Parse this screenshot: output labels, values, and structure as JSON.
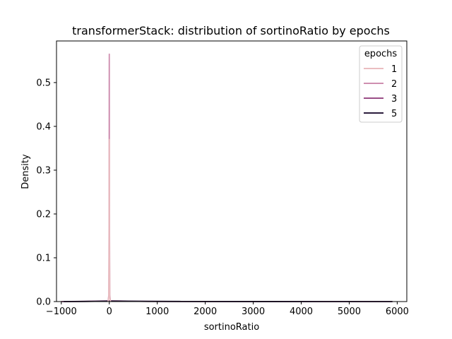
{
  "chart_data": {
    "type": "line",
    "title": "transformerStack: distribution of sortinoRatio by epochs",
    "xlabel": "sortinoRatio",
    "ylabel": "Density",
    "xlim": [
      -1100,
      6200
    ],
    "ylim": [
      0,
      0.595
    ],
    "x_ticks": [
      -1000,
      0,
      1000,
      2000,
      3000,
      4000,
      5000,
      6000
    ],
    "x_tick_labels": [
      "−1000",
      "0",
      "1000",
      "2000",
      "3000",
      "4000",
      "5000",
      "6000"
    ],
    "y_ticks": [
      0.0,
      0.1,
      0.2,
      0.3,
      0.4,
      0.5
    ],
    "y_tick_labels": [
      "0.0",
      "0.1",
      "0.2",
      "0.3",
      "0.4",
      "0.5"
    ],
    "grid": false,
    "legend": {
      "title": "epochs",
      "placement": "top-right"
    },
    "series": [
      {
        "name": "1",
        "color": "#eabdc0",
        "x": [
          -25,
          -10,
          -4,
          -1,
          0,
          1,
          4,
          10,
          25
        ],
        "y": [
          0,
          0.01,
          0.12,
          0.35,
          0.37,
          0.35,
          0.12,
          0.01,
          0
        ]
      },
      {
        "name": "2",
        "color": "#cf8fb0",
        "x": [
          -25,
          -10,
          -4,
          -1,
          0,
          1,
          4,
          10,
          25
        ],
        "y": [
          0,
          0.015,
          0.2,
          0.54,
          0.565,
          0.54,
          0.2,
          0.015,
          0
        ]
      },
      {
        "name": "3",
        "color": "#9a4e86",
        "x": [
          -1000,
          -600,
          -300,
          0,
          200,
          600,
          1200,
          3000,
          5900
        ],
        "y": [
          0,
          0.0004,
          0.001,
          0.0016,
          0.0013,
          0.0006,
          0.0002,
          5e-05,
          0
        ]
      },
      {
        "name": "5",
        "color": "#2b1d3d",
        "x": [
          -950,
          -500,
          -200,
          0,
          300,
          800,
          1500,
          3000,
          4500,
          5900
        ],
        "y": [
          0,
          0.0003,
          0.0008,
          0.0012,
          0.001,
          0.0005,
          0.00025,
          0.0001,
          4e-05,
          0
        ]
      }
    ]
  }
}
